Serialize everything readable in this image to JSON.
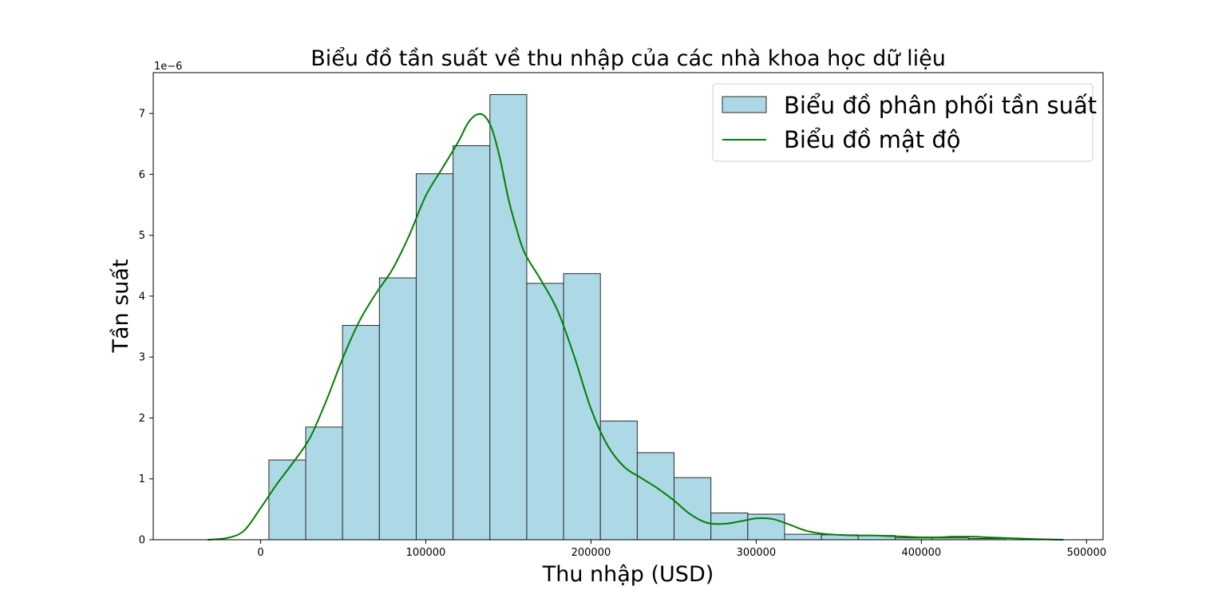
{
  "chart_data": {
    "type": "bar",
    "title": "Biểu đồ tần suất về thu nhập của các nhà khoa học dữ liệu",
    "xlabel": "Thu nhập (USD)",
    "ylabel": "Tần suất",
    "y_offset_text": "1e−6",
    "y_scale_exponent": -6,
    "xlim": [
      -65000,
      510000
    ],
    "ylim": [
      0,
      7.67
    ],
    "x_ticks": [
      0,
      100000,
      200000,
      300000,
      400000,
      500000
    ],
    "x_tick_labels": [
      "0",
      "100000",
      "200000",
      "300000",
      "400000",
      "500000"
    ],
    "y_ticks": [
      0,
      1,
      2,
      3,
      4,
      5,
      6,
      7
    ],
    "y_tick_labels": [
      "0",
      "1",
      "2",
      "3",
      "4",
      "5",
      "6",
      "7"
    ],
    "grid": false,
    "legend_placement": "top-right",
    "legend": [
      {
        "label": "Biểu đồ phân phối tần suất",
        "kind": "patch"
      },
      {
        "label": "Biểu đồ mật độ",
        "kind": "line"
      }
    ],
    "histogram": {
      "name": "Biểu đồ phân phối tần suất",
      "bin_edges": [
        5000,
        27300,
        49600,
        71900,
        94200,
        116500,
        138800,
        161100,
        183400,
        205700,
        228000,
        250300,
        272600,
        294900,
        317200,
        339500,
        361800,
        384100,
        406400,
        428700,
        451000
      ],
      "values": [
        1.31,
        1.85,
        3.52,
        4.3,
        6.01,
        6.47,
        7.31,
        4.21,
        4.37,
        1.95,
        1.43,
        1.02,
        0.44,
        0.42,
        0.09,
        0.08,
        0.07,
        0.03,
        0.03,
        0.02
      ],
      "fill_color": "#add8e6",
      "edge_color": "#2b2b2b"
    },
    "density": {
      "name": "Biểu đồ mật độ",
      "color": "#008000",
      "x": [
        -32000,
        -20000,
        -10000,
        0,
        10000,
        20000,
        30000,
        40000,
        50000,
        60000,
        70000,
        80000,
        90000,
        100000,
        110000,
        120000,
        125000,
        130000,
        135000,
        140000,
        145000,
        150000,
        155000,
        160000,
        170000,
        180000,
        190000,
        200000,
        210000,
        220000,
        230000,
        240000,
        250000,
        260000,
        270000,
        280000,
        290000,
        300000,
        310000,
        320000,
        330000,
        340000,
        350000,
        360000,
        370000,
        380000,
        390000,
        400000,
        410000,
        420000,
        430000,
        440000,
        450000,
        460000,
        470000,
        486000
      ],
      "values": [
        0.0,
        0.03,
        0.15,
        0.52,
        0.92,
        1.28,
        1.68,
        2.3,
        3.0,
        3.6,
        4.05,
        4.45,
        5.0,
        5.65,
        6.1,
        6.55,
        6.82,
        6.97,
        6.97,
        6.75,
        6.25,
        5.6,
        5.1,
        4.7,
        4.25,
        3.75,
        3.0,
        2.15,
        1.55,
        1.2,
        1.02,
        0.85,
        0.65,
        0.42,
        0.28,
        0.26,
        0.3,
        0.35,
        0.34,
        0.25,
        0.15,
        0.1,
        0.08,
        0.07,
        0.07,
        0.06,
        0.05,
        0.04,
        0.04,
        0.05,
        0.05,
        0.04,
        0.03,
        0.02,
        0.01,
        0.0
      ]
    }
  }
}
